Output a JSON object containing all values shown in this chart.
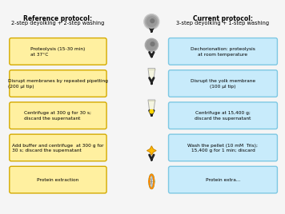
{
  "left_boxes": [
    "Proteolysis (15-30 min)\nat 37°C",
    "Disrupt membranes by repeated pipetting\n(200 μl tip)",
    "Centrifuge at 300 g for 30 s;\ndiscard the supernatant",
    "Add buffer and centrifuge  at 300 g for\n30 s; discard the supernatant",
    "Protein extraction"
  ],
  "right_boxes": [
    "Dechorionation: proteolysis\nat room temperature",
    "Disrupt the yolk membrane\n(100 μl tip)",
    "Centrifuge at 15,400 g;\ndiscard the supernatant",
    "Wash the pellet (10 mM  Tris);\n15,400 g for 1 min; discard",
    "Protein extra..."
  ],
  "left_color": "#FFF0A0",
  "right_color": "#C8EBFB",
  "left_edge_color": "#D4AA00",
  "right_edge_color": "#7EC8E3",
  "bg_color": "#F5F5F5",
  "title_color": "#000000",
  "box_text_color": "#000000",
  "arrow_color": "#222222",
  "title_left_line1": "Reference protocol:",
  "title_left_line2": "2-step deyolking + 2-step washing",
  "title_right_line1": "Current protocol:",
  "title_right_line2": "3-step deyolking + 1-step washing"
}
